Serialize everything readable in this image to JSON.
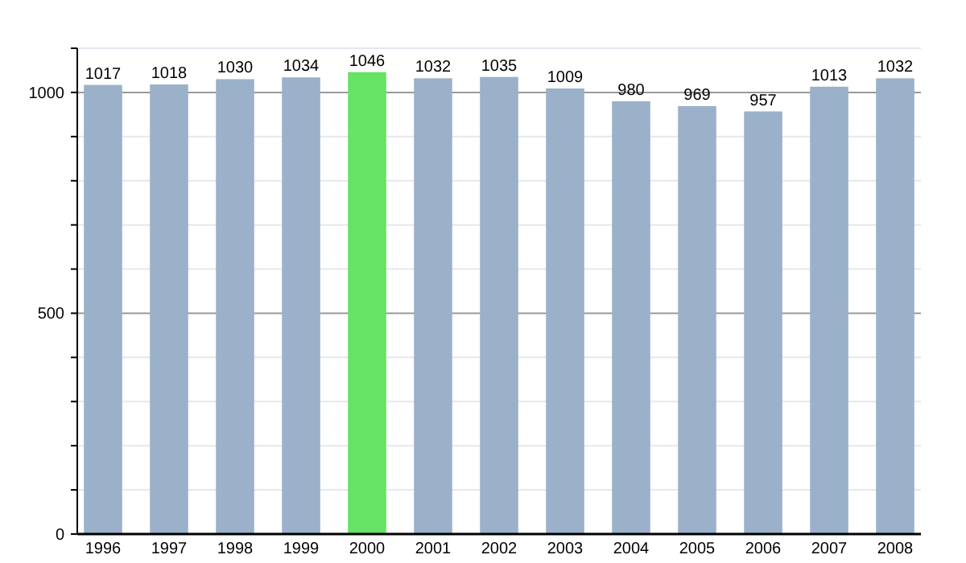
{
  "chart_data": {
    "type": "bar",
    "categories": [
      "1996",
      "1997",
      "1998",
      "1999",
      "2000",
      "2001",
      "2002",
      "2003",
      "2004",
      "2005",
      "2006",
      "2007",
      "2008"
    ],
    "values": [
      1017,
      1018,
      1030,
      1034,
      1046,
      1032,
      1035,
      1009,
      980,
      969,
      957,
      1013,
      1032
    ],
    "colors": [
      "#9ab1c9",
      "#9ab1c9",
      "#9ab1c9",
      "#9ab1c9",
      "#66e264",
      "#9ab1c9",
      "#9ab1c9",
      "#9ab1c9",
      "#9ab1c9",
      "#9ab1c9",
      "#9ab1c9",
      "#9ab1c9",
      "#9ab1c9"
    ],
    "data_labels": true,
    "ylim": [
      0,
      1100
    ],
    "yticks": [
      0,
      {
        "value": 100,
        "label": null
      },
      {
        "value": 200,
        "label": null
      },
      {
        "value": 300,
        "label": null
      },
      {
        "value": 400,
        "label": null
      },
      500,
      {
        "value": 600,
        "label": null
      },
      {
        "value": 700,
        "label": null
      },
      {
        "value": 800,
        "label": null
      },
      {
        "value": 900,
        "label": null
      },
      1000,
      {
        "value": 1100,
        "label": null
      }
    ],
    "grid": "y"
  }
}
